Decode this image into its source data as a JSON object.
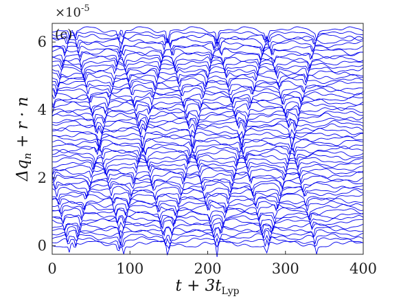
{
  "chart_data": {
    "type": "line",
    "panel_label": "(c)",
    "xlabel": "t + 3t",
    "xlabel_sub": "Lyp",
    "ylabel": "Δq",
    "ylabel_sub": "n",
    "ylabel_tail": " + r · n",
    "y_exponent_prefix": "×10",
    "y_exponent_power": "-5",
    "xlim": [
      0,
      400
    ],
    "ylim": [
      -0.25,
      6.55
    ],
    "xticks": [
      "0",
      "100",
      "200",
      "300",
      "400"
    ],
    "yticks": [
      "0",
      "2",
      "4",
      "6"
    ],
    "xtick_values": [
      0,
      100,
      200,
      300,
      400
    ],
    "ytick_values": [
      0,
      2,
      4,
      6
    ],
    "grid": false,
    "line_color": "#0000ee",
    "series_summary": {
      "count": 60,
      "x_range": [
        0,
        400
      ],
      "baseline_first": 0.05,
      "baseline_last": 6.35,
      "offset_r": 0.107,
      "units": "×10^-5"
    },
    "wave_crossing_x": [
      22,
      92,
      148,
      212,
      275,
      340
    ],
    "wave_period": 126
  }
}
